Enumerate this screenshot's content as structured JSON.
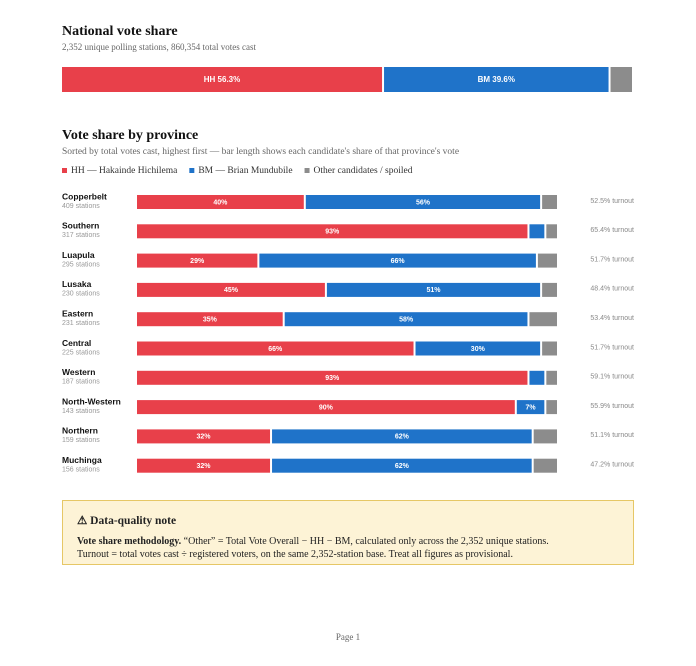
{
  "chart_data": [
    {
      "type": "stacked-bar-h",
      "title": "National vote share",
      "subtitle": "2,352 unique polling stations, 860,354 total votes cast",
      "xlim": [
        0,
        100
      ],
      "series": [
        {
          "color": "#e8404a",
          "values": [
            56.3
          ],
          "value_labels": [
            "HH 56.3%"
          ]
        },
        {
          "color": "#1f73c9",
          "values": [
            39.6
          ],
          "value_labels": [
            "BM 39.6%"
          ]
        },
        {
          "color": "#8c8c8c",
          "values": [
            4.1
          ],
          "value_labels": [
            null
          ]
        }
      ]
    },
    {
      "type": "stacked-bar-h",
      "title": "Vote share by province",
      "subtitle": "Sorted by total votes cast, highest first — bar length shows each candidate's share of that province's vote",
      "xlim": [
        0,
        100
      ],
      "categories": [
        "Copperbelt",
        "Southern",
        "Luapula",
        "Lusaka",
        "Eastern",
        "Central",
        "Western",
        "North-Western",
        "Northern",
        "Muchinga"
      ],
      "stations": [
        "409 stations",
        "317 stations",
        "295 stations",
        "230 stations",
        "231 stations",
        "225 stations",
        "187 stations",
        "143 stations",
        "159 stations",
        "156 stations"
      ],
      "turnout": [
        "52.5% turnout",
        "65.4% turnout",
        "51.7% turnout",
        "48.4% turnout",
        "53.4% turnout",
        "51.7% turnout",
        "59.1% turnout",
        "55.9% turnout",
        "51.1% turnout",
        "47.2% turnout"
      ],
      "series": [
        {
          "name": "HH — Hakainde Hichilema",
          "color": "#e8404a",
          "values": [
            40,
            93,
            29,
            45,
            35,
            66,
            93,
            90,
            32,
            32
          ],
          "value_labels": [
            "40%",
            "93%",
            "29%",
            "45%",
            "35%",
            "66%",
            "93%",
            "90%",
            "32%",
            "32%"
          ]
        },
        {
          "name": "BM — Brian Mundubile",
          "color": "#1f73c9",
          "values": [
            56,
            4,
            66,
            51,
            58,
            30,
            4,
            7,
            62,
            62
          ],
          "value_labels": [
            "56%",
            null,
            "66%",
            "51%",
            "58%",
            "30%",
            null,
            "7%",
            "62%",
            "62%"
          ]
        },
        {
          "name": "Other candidates / spoiled",
          "color": "#8c8c8c",
          "values": [
            4,
            3,
            5,
            4,
            7,
            4,
            3,
            3,
            6,
            6
          ],
          "value_labels": [
            null,
            null,
            null,
            null,
            null,
            null,
            null,
            null,
            null,
            null
          ]
        }
      ]
    }
  ],
  "note": {
    "title": "⚠ Data-quality note",
    "lead": "Vote share methodology.",
    "line1": " “Other” = Total Vote Overall − HH − BM, calculated only across the 2,352 unique stations.",
    "line2": "Turnout = total votes cast ÷ registered voters, on the same 2,352-station base. Treat all figures as provisional."
  },
  "footer": "Page 1"
}
